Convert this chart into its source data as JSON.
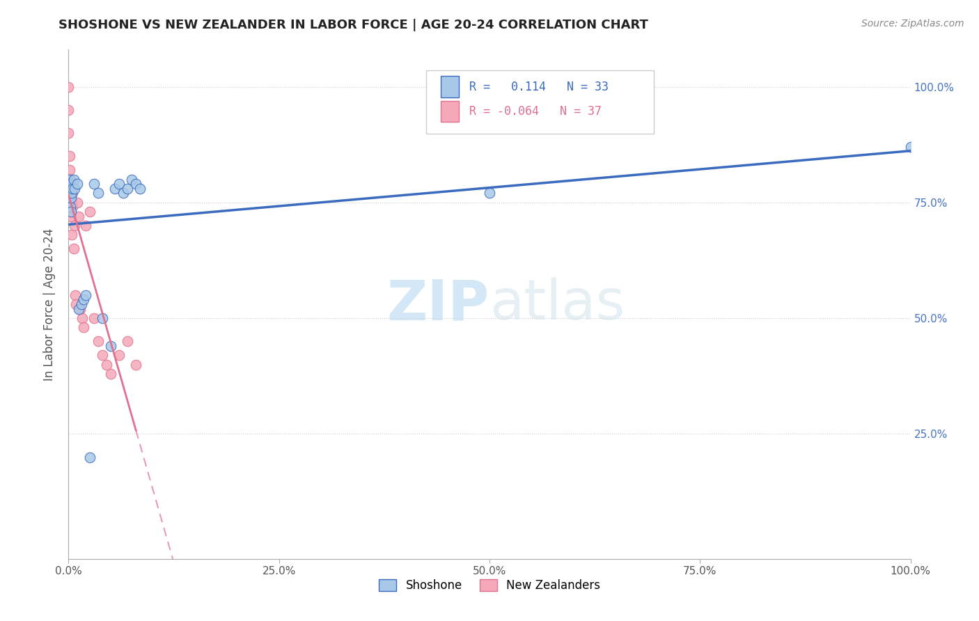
{
  "title": "SHOSHONE VS NEW ZEALANDER IN LABOR FORCE | AGE 20-24 CORRELATION CHART",
  "source": "Source: ZipAtlas.com",
  "ylabel": "In Labor Force | Age 20-24",
  "r_shoshone": 0.114,
  "n_shoshone": 33,
  "r_newzealander": -0.064,
  "n_newzealander": 37,
  "shoshone_color": "#a8c8e8",
  "newzealander_color": "#f4a8b8",
  "shoshone_line_color": "#3a6bbf",
  "newzealander_line_color": "#e07090",
  "watermark_color": "#c8e0f0",
  "shoshone_x": [
    0.0,
    0.0,
    0.001,
    0.001,
    0.001,
    0.002,
    0.002,
    0.002,
    0.003,
    0.003,
    0.004,
    0.005,
    0.006,
    0.007,
    0.01,
    0.012,
    0.015,
    0.018,
    0.02,
    0.025,
    0.03,
    0.035,
    0.04,
    0.05,
    0.055,
    0.06,
    0.065,
    0.07,
    0.075,
    0.08,
    0.085,
    0.5,
    1.0
  ],
  "shoshone_y": [
    0.77,
    0.75,
    0.8,
    0.78,
    0.76,
    0.79,
    0.77,
    0.74,
    0.73,
    0.76,
    0.77,
    0.78,
    0.8,
    0.78,
    0.79,
    0.52,
    0.53,
    0.54,
    0.55,
    0.2,
    0.79,
    0.77,
    0.5,
    0.44,
    0.78,
    0.79,
    0.77,
    0.78,
    0.8,
    0.79,
    0.78,
    0.77,
    0.87
  ],
  "newzealander_x": [
    0.0,
    0.0,
    0.0,
    0.001,
    0.001,
    0.001,
    0.001,
    0.001,
    0.002,
    0.002,
    0.002,
    0.003,
    0.003,
    0.003,
    0.004,
    0.004,
    0.005,
    0.005,
    0.006,
    0.007,
    0.008,
    0.009,
    0.01,
    0.012,
    0.014,
    0.016,
    0.018,
    0.02,
    0.025,
    0.03,
    0.035,
    0.04,
    0.045,
    0.05,
    0.06,
    0.07,
    0.08
  ],
  "newzealander_y": [
    1.0,
    0.95,
    0.9,
    0.85,
    0.82,
    0.8,
    0.78,
    0.75,
    0.8,
    0.77,
    0.73,
    0.78,
    0.75,
    0.72,
    0.75,
    0.68,
    0.77,
    0.74,
    0.65,
    0.7,
    0.55,
    0.53,
    0.75,
    0.72,
    0.52,
    0.5,
    0.48,
    0.7,
    0.73,
    0.5,
    0.45,
    0.42,
    0.4,
    0.38,
    0.42,
    0.45,
    0.4
  ],
  "xlim": [
    0.0,
    1.0
  ],
  "ylim": [
    -0.02,
    1.08
  ],
  "xticks": [
    0.0,
    0.25,
    0.5,
    0.75,
    1.0
  ],
  "yticks": [
    0.25,
    0.5,
    0.75,
    1.0
  ],
  "xtick_labels": [
    "0.0%",
    "25.0%",
    "50.0%",
    "75.0%",
    "100.0%"
  ],
  "ytick_labels": [
    "25.0%",
    "50.0%",
    "75.0%",
    "100.0%"
  ]
}
